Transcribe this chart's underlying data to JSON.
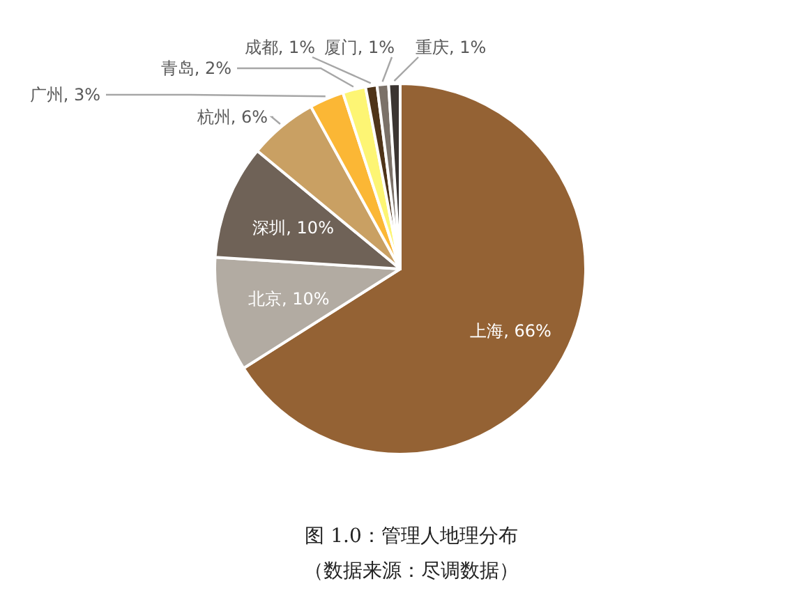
{
  "chart_data": {
    "type": "pie",
    "categories": [
      "上海",
      "北京",
      "深圳",
      "杭州",
      "广州",
      "青岛",
      "成都",
      "厦门",
      "重庆"
    ],
    "values": [
      66,
      10,
      10,
      6,
      3,
      2,
      1,
      1,
      1
    ],
    "colors": [
      "#946234",
      "#b2aba2",
      "#6f6257",
      "#c9a063",
      "#fbb735",
      "#fdf574",
      "#4f3419",
      "#7b7168",
      "#3b3532"
    ],
    "value_labels": [
      "66%",
      "10%",
      "10%",
      "6%",
      "3%",
      "2%",
      "1%",
      "1%",
      "1%"
    ],
    "title": "图 1.0：管理人地理分布",
    "annotations": [
      "（数据来源：尽调数据）"
    ],
    "legend": false
  }
}
